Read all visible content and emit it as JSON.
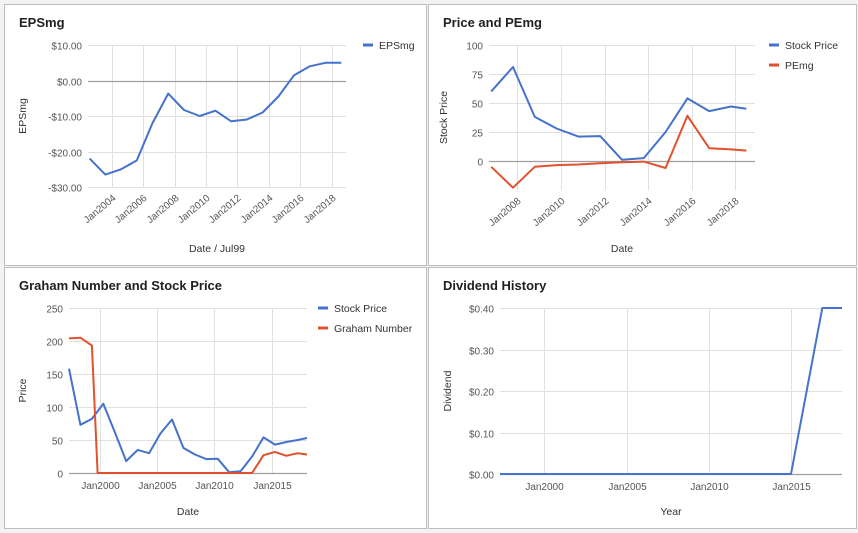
{
  "chart_data": [
    {
      "id": "eps",
      "type": "line",
      "title": "EPSmg",
      "xlabel": "Date / Jul99",
      "ylabel": "EPSmg",
      "x_type": "time",
      "xlim": [
        2002.5,
        2018.9
      ],
      "ylim": [
        -30,
        10
      ],
      "y_ticks": [
        10,
        0,
        -10,
        -20,
        -30
      ],
      "y_tick_labels": [
        "$10.00",
        "$0.00",
        "-$10.00",
        "-$20.00",
        "-$30.00"
      ],
      "x_ticks": [
        2004,
        2006,
        2008,
        2010,
        2012,
        2014,
        2016,
        2018
      ],
      "x_tick_labels": [
        "Jan2004",
        "Jan2006",
        "Jan2008",
        "Jan2010",
        "Jan2012",
        "Jan2014",
        "Jan2016",
        "Jan2018"
      ],
      "x_tick_rotation": -40,
      "zero_line": true,
      "grid": true,
      "legend": "right",
      "series": [
        {
          "name": "EPSmg",
          "color": "#4472cc",
          "x": [
            2002.6,
            2003.6,
            2004.6,
            2005.6,
            2006.6,
            2007.6,
            2008.6,
            2009.6,
            2010.6,
            2011.6,
            2012.6,
            2013.6,
            2014.6,
            2015.6,
            2016.6,
            2017.6,
            2018.6
          ],
          "y": [
            -22,
            -26.5,
            -25,
            -22.5,
            -12,
            -3.7,
            -8.3,
            -10,
            -8.5,
            -11.5,
            -11,
            -9,
            -4.5,
            1.5,
            4,
            5,
            5
          ]
        }
      ]
    },
    {
      "id": "price",
      "type": "line",
      "title": "Price and PEmg",
      "xlabel": "Date",
      "ylabel": "Stock Price",
      "x_type": "time",
      "xlim": [
        2006.7,
        2018.9
      ],
      "ylim": [
        -25,
        100
      ],
      "y_ticks": [
        100,
        75,
        50,
        25,
        0
      ],
      "y_tick_labels": [
        "100",
        "75",
        "50",
        "25",
        "0"
      ],
      "x_ticks": [
        2008,
        2010,
        2012,
        2014,
        2016,
        2018
      ],
      "x_tick_labels": [
        "Jan2008",
        "Jan2010",
        "Jan2012",
        "Jan2014",
        "Jan2016",
        "Jan2018"
      ],
      "x_tick_rotation": -40,
      "zero_line": true,
      "grid": true,
      "legend": "right",
      "series": [
        {
          "name": "Stock Price",
          "color": "#4472cc",
          "x": [
            2006.8,
            2007.8,
            2008.8,
            2009.8,
            2010.8,
            2011.8,
            2012.8,
            2013.8,
            2014.8,
            2015.8,
            2016.8,
            2017.8,
            2018.5
          ],
          "y": [
            60,
            81,
            38,
            28,
            21,
            21.5,
            1,
            2.5,
            25,
            54,
            43,
            47,
            45
          ]
        },
        {
          "name": "PEmg",
          "color": "#e0522d",
          "x": [
            2006.8,
            2007.8,
            2008.8,
            2009.8,
            2010.8,
            2011.8,
            2012.8,
            2013.8,
            2014.8,
            2015.8,
            2016.8,
            2017.8,
            2018.5
          ],
          "y": [
            -5,
            -23,
            -5,
            -3.5,
            -3,
            -2,
            -1,
            -0.5,
            -6,
            39,
            11,
            10,
            9
          ]
        }
      ]
    },
    {
      "id": "graham",
      "type": "line",
      "title": "Graham Number and Stock Price",
      "xlabel": "Date",
      "ylabel": "Price",
      "x_type": "time",
      "xlim": [
        1997.3,
        2018.1
      ],
      "ylim": [
        0,
        250
      ],
      "y_ticks": [
        250,
        200,
        150,
        100,
        50,
        0
      ],
      "y_tick_labels": [
        "250",
        "200",
        "150",
        "100",
        "50",
        "0"
      ],
      "x_ticks": [
        2000,
        2005,
        2010,
        2015
      ],
      "x_tick_labels": [
        "Jan2000",
        "Jan2005",
        "Jan2010",
        "Jan2015"
      ],
      "x_tick_rotation": 0,
      "zero_line": false,
      "grid": true,
      "legend": "right",
      "series": [
        {
          "name": "Stock Price",
          "color": "#4472cc",
          "x": [
            1997.3,
            1998.3,
            1999.3,
            2000.3,
            2001.3,
            2002.3,
            2003.3,
            2004.3,
            2005.3,
            2006.3,
            2007.3,
            2008.3,
            2009.3,
            2010.3,
            2011.3,
            2012.3,
            2013.3,
            2014.3,
            2015.3,
            2016.3,
            2017.3,
            2018.1
          ],
          "y": [
            158,
            73,
            82,
            105,
            62,
            18,
            35,
            30,
            60,
            81,
            38,
            28,
            21,
            21.5,
            1,
            2.5,
            25,
            54,
            43,
            47,
            50,
            53
          ]
        },
        {
          "name": "Graham Number",
          "color": "#e0522d",
          "x": [
            1997.3,
            1998.3,
            1999.3,
            1999.8,
            2000.3,
            2005.0,
            2010.0,
            2012.3,
            2013.3,
            2014.3,
            2015.3,
            2016.3,
            2017.3,
            2018.1
          ],
          "y": [
            204,
            205,
            193,
            0,
            0,
            0,
            0,
            0,
            0,
            27,
            32,
            26,
            30,
            28
          ]
        }
      ]
    },
    {
      "id": "dividend",
      "type": "line",
      "title": "Dividend History",
      "xlabel": "Year",
      "ylabel": "Dividend",
      "x_type": "time",
      "xlim": [
        1997.3,
        2018.1
      ],
      "ylim": [
        0,
        0.4
      ],
      "y_ticks": [
        0.4,
        0.3,
        0.2,
        0.1,
        0
      ],
      "y_tick_labels": [
        "$0.40",
        "$0.30",
        "$0.20",
        "$0.10",
        "$0.00"
      ],
      "x_ticks": [
        2000,
        2005,
        2010,
        2015
      ],
      "x_tick_labels": [
        "Jan2000",
        "Jan2005",
        "Jan2010",
        "Jan2015"
      ],
      "x_tick_rotation": 0,
      "zero_line": false,
      "grid": true,
      "legend": "none",
      "series": [
        {
          "name": "Dividend",
          "color": "#4472cc",
          "x": [
            1997.3,
            2015.0,
            2016.9,
            2018.1
          ],
          "y": [
            0,
            0,
            0.4,
            0.4
          ]
        }
      ]
    }
  ]
}
